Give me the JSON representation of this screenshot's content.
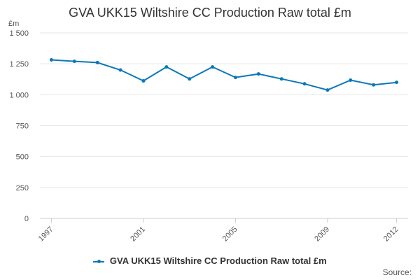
{
  "title": "GVA UKK15 Wiltshire CC Production Raw total £m",
  "source_label": "Source:",
  "colors": {
    "series": "#0a78b8",
    "grid": "#e6e6e6",
    "axis": "#cccccc"
  },
  "chart_data": {
    "type": "line",
    "title": "GVA UKK15 Wiltshire CC Production Raw total £m",
    "ylabel": "£m",
    "xlabel": "",
    "ylim": [
      0,
      1500
    ],
    "yticks": [
      0,
      250,
      500,
      750,
      1000,
      1250,
      1500
    ],
    "ytick_labels": [
      "0",
      "250",
      "500",
      "750",
      "1 000",
      "1 250",
      "1 500"
    ],
    "xticks": [
      1997,
      2001,
      2005,
      2009,
      2012
    ],
    "x": [
      1997,
      1998,
      1999,
      2000,
      2001,
      2002,
      2003,
      2004,
      2005,
      2006,
      2007,
      2008,
      2009,
      2010,
      2011,
      2012
    ],
    "series": [
      {
        "name": "GVA UKK15 Wiltshire CC Production Raw total £m",
        "values": [
          1282,
          1270,
          1260,
          1200,
          1112,
          1225,
          1128,
          1225,
          1140,
          1168,
          1128,
          1088,
          1038,
          1118,
          1080,
          1100
        ]
      }
    ],
    "grid": true,
    "legend": "bottom-center"
  }
}
